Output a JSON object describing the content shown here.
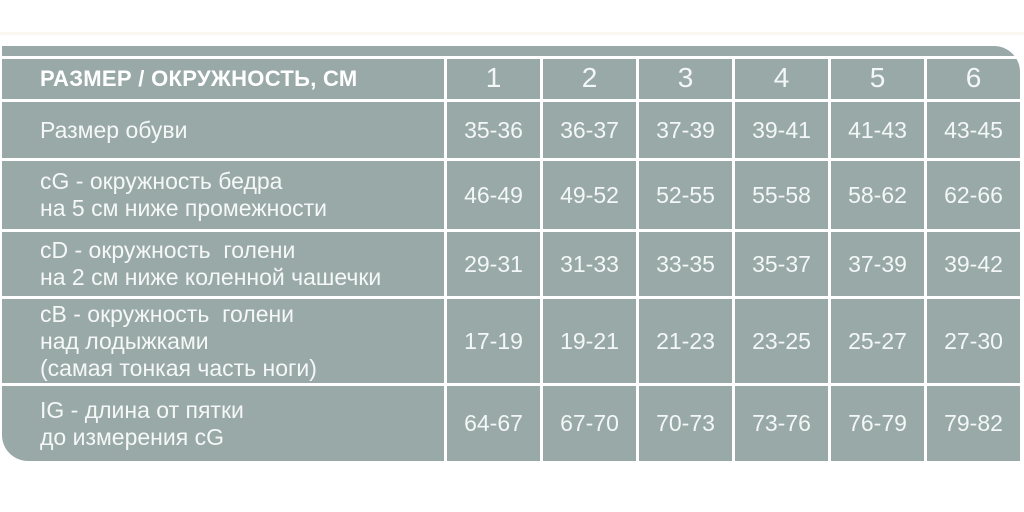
{
  "page": {
    "background_color": "#ffffff",
    "faint_line_color": "#f8f2e4"
  },
  "table": {
    "cell_color": "#98a9a8",
    "grid_color": "#ffffff",
    "text_color": "#f3f7f6",
    "header": {
      "label": "РАЗМЕР / ОКРУЖНОСТЬ, СМ",
      "columns": [
        "1",
        "2",
        "3",
        "4",
        "5",
        "6"
      ]
    },
    "rows": [
      {
        "label_lines": [
          "Размер обуви"
        ],
        "values": [
          "35-36",
          "36-37",
          "37-39",
          "39-41",
          "41-43",
          "43-45"
        ]
      },
      {
        "label_lines": [
          "cG - окружность бедра",
          "на 5 см ниже промежности"
        ],
        "values": [
          "46-49",
          "49-52",
          "52-55",
          "55-58",
          "58-62",
          "62-66"
        ]
      },
      {
        "label_lines": [
          "cD - окружность  голени",
          "на 2 см ниже коленной чашечки"
        ],
        "values": [
          "29-31",
          "31-33",
          "33-35",
          "35-37",
          "37-39",
          "39-42"
        ]
      },
      {
        "label_lines": [
          "cB - окружность  голени",
          "над лодыжками",
          "(самая тонкая часть ноги)"
        ],
        "values": [
          "17-19",
          "19-21",
          "21-23",
          "23-25",
          "25-27",
          "27-30"
        ]
      },
      {
        "label_lines": [
          "IG - длина от пятки",
          "до измерения cG"
        ],
        "values": [
          "64-67",
          "67-70",
          "70-73",
          "73-76",
          "76-79",
          "79-82"
        ]
      }
    ]
  },
  "chart_data": {
    "type": "table",
    "title": "РАЗМЕР / ОКРУЖНОСТЬ, СМ",
    "columns": [
      "1",
      "2",
      "3",
      "4",
      "5",
      "6"
    ],
    "rows": [
      {
        "label": "Размер обуви",
        "values": [
          "35-36",
          "36-37",
          "37-39",
          "39-41",
          "41-43",
          "43-45"
        ]
      },
      {
        "label": "cG - окружность бедра на 5 см ниже промежности",
        "values": [
          "46-49",
          "49-52",
          "52-55",
          "55-58",
          "58-62",
          "62-66"
        ]
      },
      {
        "label": "cD - окружность голени на 2 см ниже коленной чашечки",
        "values": [
          "29-31",
          "31-33",
          "33-35",
          "35-37",
          "37-39",
          "39-42"
        ]
      },
      {
        "label": "cB - окружность голени над лодыжками (самая тонкая часть ноги)",
        "values": [
          "17-19",
          "19-21",
          "21-23",
          "23-25",
          "25-27",
          "27-30"
        ]
      },
      {
        "label": "IG - длина от пятки до измерения cG",
        "values": [
          "64-67",
          "67-70",
          "70-73",
          "73-76",
          "76-79",
          "79-82"
        ]
      }
    ]
  }
}
